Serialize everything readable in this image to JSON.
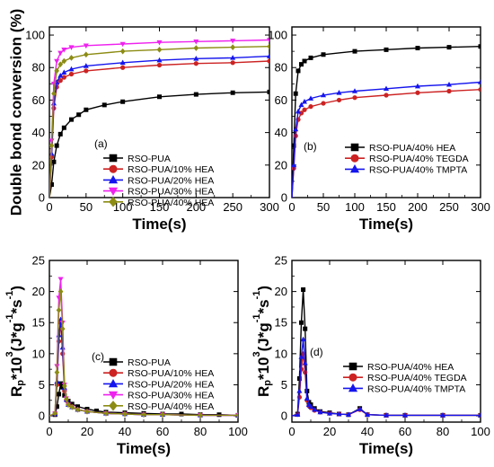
{
  "colors": {
    "black": "#000000",
    "red": "#cc2222",
    "blue": "#1515ee",
    "magenta": "#ee22ee",
    "olive": "#8c8c14"
  },
  "chart_data": [
    {
      "panel": "(a)",
      "type": "line",
      "xlabel": "Time(s)",
      "ylabel": "Double bond conversion (%)",
      "xlim": [
        0,
        300
      ],
      "ylim": [
        0,
        105
      ],
      "xticks": [
        0,
        50,
        100,
        150,
        200,
        250,
        300
      ],
      "yticks": [
        0,
        20,
        40,
        60,
        80,
        100
      ],
      "legend": "bottom-right",
      "series": [
        {
          "name": "RSO-PUA",
          "color": "black",
          "marker": "square",
          "x": [
            0,
            3,
            6,
            10,
            15,
            20,
            30,
            40,
            50,
            75,
            100,
            150,
            200,
            250,
            300
          ],
          "y": [
            0,
            8,
            22,
            32,
            39,
            43,
            48,
            51,
            54,
            57,
            59,
            62,
            63.5,
            64.5,
            65
          ]
        },
        {
          "name": "RSO-PUA/10% HEA",
          "color": "red",
          "marker": "circle",
          "x": [
            0,
            3,
            6,
            10,
            15,
            20,
            30,
            50,
            100,
            150,
            200,
            250,
            300
          ],
          "y": [
            0,
            25,
            55,
            68,
            72,
            74,
            76,
            78,
            80,
            81.5,
            82.5,
            83,
            84
          ]
        },
        {
          "name": "RSO-PUA/20% HEA",
          "color": "blue",
          "marker": "triangle-up",
          "x": [
            0,
            3,
            6,
            10,
            15,
            20,
            30,
            50,
            100,
            150,
            200,
            250,
            300
          ],
          "y": [
            0,
            27,
            58,
            71,
            75,
            77,
            79,
            81,
            83,
            84.5,
            85.5,
            86,
            87
          ]
        },
        {
          "name": "RSO-PUA/30% HEA",
          "color": "magenta",
          "marker": "triangle-down",
          "x": [
            0,
            3,
            6,
            10,
            15,
            20,
            30,
            50,
            100,
            150,
            200,
            250,
            300
          ],
          "y": [
            0,
            35,
            70,
            84,
            89,
            91,
            92.5,
            93.5,
            94.5,
            95.5,
            96,
            96.5,
            97
          ]
        },
        {
          "name": "RSO-PUA/40% HEA",
          "color": "olive",
          "marker": "diamond",
          "x": [
            0,
            3,
            6,
            10,
            15,
            20,
            30,
            50,
            100,
            150,
            200,
            250,
            300
          ],
          "y": [
            0,
            32,
            64,
            78,
            82,
            84,
            86,
            88,
            90,
            91,
            92,
            92.5,
            93
          ]
        }
      ]
    },
    {
      "panel": "(b)",
      "type": "line",
      "xlabel": "Time(s)",
      "ylabel": "Double bond conversion (%)",
      "xlim": [
        0,
        300
      ],
      "ylim": [
        0,
        105
      ],
      "xticks": [
        0,
        50,
        100,
        150,
        200,
        250,
        300
      ],
      "yticks": [
        0,
        20,
        40,
        60,
        80,
        100
      ],
      "legend": "bottom-right",
      "series": [
        {
          "name": "RSO-PUA/40% HEA",
          "color": "black",
          "marker": "square",
          "x": [
            0,
            3,
            6,
            10,
            15,
            20,
            30,
            50,
            100,
            150,
            200,
            250,
            300
          ],
          "y": [
            0,
            32,
            64,
            78,
            82,
            84,
            86,
            88,
            90,
            91,
            92,
            92.5,
            93
          ]
        },
        {
          "name": "RSO-PUA/40% TEGDA",
          "color": "red",
          "marker": "circle",
          "x": [
            0,
            3,
            6,
            10,
            15,
            20,
            30,
            50,
            75,
            100,
            150,
            200,
            250,
            300
          ],
          "y": [
            0,
            18,
            38,
            48,
            52,
            54,
            56,
            58,
            60,
            61.5,
            63,
            64.5,
            65.5,
            66.5
          ]
        },
        {
          "name": "RSO-PUA/40% TMPTA",
          "color": "blue",
          "marker": "triangle-up",
          "x": [
            0,
            3,
            6,
            10,
            15,
            20,
            30,
            50,
            75,
            100,
            150,
            200,
            250,
            300
          ],
          "y": [
            0,
            20,
            42,
            53,
            57,
            59,
            61,
            63,
            64.5,
            65.5,
            67,
            68.5,
            69.5,
            71
          ]
        }
      ]
    },
    {
      "panel": "(c)",
      "type": "line",
      "xlabel": "Time(s)",
      "ylabel": "R_p*10^3(J*g^-1*s^-1)",
      "xlim": [
        0,
        100
      ],
      "ylim": [
        -1,
        25
      ],
      "xticks": [
        0,
        20,
        40,
        60,
        80,
        100
      ],
      "yticks": [
        0,
        5,
        10,
        15,
        20,
        25
      ],
      "legend": "bottom-right",
      "series": [
        {
          "name": "RSO-PUA",
          "color": "black",
          "marker": "square",
          "x": [
            0,
            3,
            4,
            5,
            6,
            7,
            8,
            10,
            12,
            15,
            20,
            25,
            30,
            40,
            50,
            60,
            70,
            80,
            90,
            100
          ],
          "y": [
            0,
            0.2,
            1.5,
            3.5,
            5.2,
            4.6,
            3.3,
            2.4,
            1.9,
            1.5,
            1.1,
            0.8,
            0.6,
            0.5,
            0.4,
            0.3,
            0.3,
            0.2,
            0.2,
            0.1
          ]
        },
        {
          "name": "RSO-PUA/10% HEA",
          "color": "red",
          "marker": "circle",
          "x": [
            0,
            3,
            4,
            5,
            6,
            7,
            8,
            9,
            10,
            12,
            15,
            20,
            30,
            40,
            50,
            60,
            80,
            100
          ],
          "y": [
            0,
            0.3,
            5,
            12,
            15,
            10,
            4,
            2.5,
            1.8,
            1.5,
            1,
            0.7,
            0.4,
            0.3,
            0.2,
            0.2,
            0.1,
            0.1
          ]
        },
        {
          "name": "RSO-PUA/20% HEA",
          "color": "blue",
          "marker": "triangle-up",
          "x": [
            0,
            3,
            4,
            5,
            6,
            7,
            8,
            9,
            10,
            12,
            15,
            20,
            30,
            40,
            50,
            60,
            80,
            100
          ],
          "y": [
            0,
            0.3,
            5.5,
            13,
            15.5,
            11,
            4.5,
            2.6,
            1.8,
            1.4,
            1,
            0.7,
            0.4,
            0.3,
            0.2,
            0.2,
            0.1,
            0.1
          ]
        },
        {
          "name": "RSO-PUA/30% HEA",
          "color": "magenta",
          "marker": "triangle-down",
          "x": [
            0,
            3,
            4,
            5,
            6,
            7,
            8,
            9,
            10,
            12,
            15,
            20,
            30,
            40,
            50,
            60,
            80,
            100
          ],
          "y": [
            0,
            0.4,
            8,
            19,
            22,
            15,
            5,
            2.8,
            1.8,
            1.4,
            1,
            0.7,
            0.4,
            0.3,
            0.2,
            0.2,
            0.1,
            0.1
          ]
        },
        {
          "name": "RSO-PUA/40% HEA",
          "color": "olive",
          "marker": "diamond",
          "x": [
            0,
            3,
            4,
            5,
            6,
            7,
            8,
            9,
            10,
            12,
            15,
            20,
            30,
            40,
            50,
            60,
            80,
            100
          ],
          "y": [
            0,
            0.4,
            7,
            17,
            20,
            14,
            4.8,
            2.7,
            1.8,
            1.4,
            1,
            0.7,
            0.4,
            0.3,
            0.2,
            0.2,
            0.1,
            0.1
          ]
        }
      ]
    },
    {
      "panel": "(d)",
      "type": "line",
      "xlabel": "Time(s)",
      "ylabel": "R_p*10^3(J*g^-1*s^-1)",
      "xlim": [
        0,
        100
      ],
      "ylim": [
        -1,
        25
      ],
      "xticks": [
        0,
        20,
        40,
        60,
        80,
        100
      ],
      "yticks": [
        0,
        5,
        10,
        15,
        20,
        25
      ],
      "legend": "bottom-right",
      "series": [
        {
          "name": "RSO-PUA/40% HEA",
          "color": "black",
          "marker": "square",
          "x": [
            0,
            3,
            4,
            5,
            6,
            7,
            8,
            9,
            10,
            12,
            15,
            20,
            25,
            30,
            36,
            40,
            50,
            60,
            80,
            100
          ],
          "y": [
            0,
            0.3,
            6,
            15,
            20.3,
            14,
            4,
            2.2,
            1.8,
            1.2,
            0.7,
            0.5,
            0.3,
            0.2,
            1.2,
            0.2,
            0.1,
            0.1,
            0.1,
            0.1
          ]
        },
        {
          "name": "RSO-PUA/40% TEGDA",
          "color": "red",
          "marker": "circle",
          "x": [
            0,
            3,
            4,
            5,
            6,
            7,
            8,
            9,
            10,
            12,
            15,
            20,
            25,
            30,
            36,
            40,
            50,
            60,
            80,
            100
          ],
          "y": [
            0,
            0.2,
            3,
            7.5,
            10,
            7,
            2.5,
            1.6,
            1.3,
            0.9,
            0.6,
            0.4,
            0.3,
            0.2,
            1,
            0.2,
            0.1,
            0.1,
            0.1,
            0.1
          ]
        },
        {
          "name": "RSO-PUA/40% TMPTA",
          "color": "blue",
          "marker": "triangle-up",
          "x": [
            0,
            3,
            4,
            5,
            6,
            7,
            8,
            9,
            10,
            12,
            15,
            20,
            25,
            30,
            36,
            40,
            50,
            60,
            80,
            100
          ],
          "y": [
            0,
            0.2,
            4,
            9.5,
            12.3,
            8.5,
            2.8,
            1.8,
            1.5,
            1,
            0.6,
            0.4,
            0.3,
            0.2,
            1.1,
            0.2,
            0.1,
            0.1,
            0.1,
            0.1
          ]
        }
      ]
    }
  ]
}
